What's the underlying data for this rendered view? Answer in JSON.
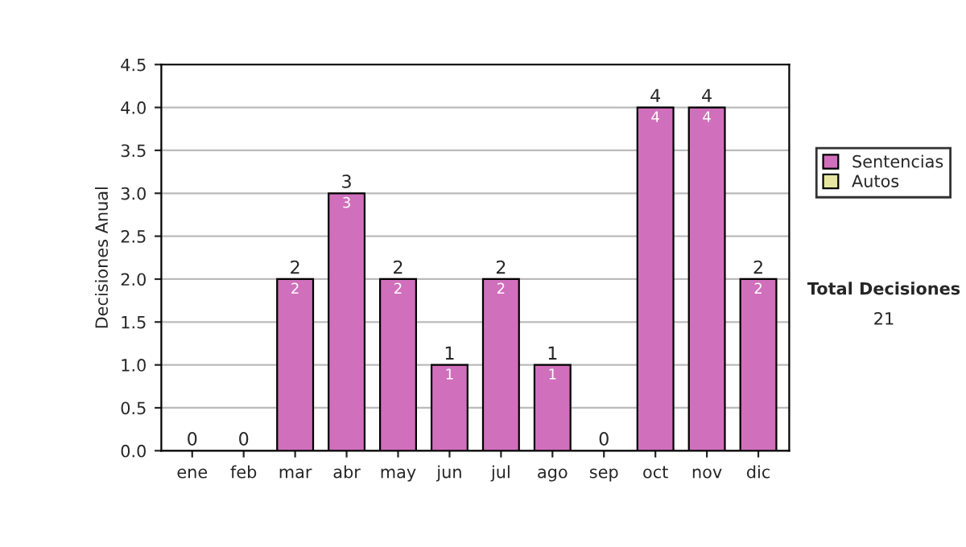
{
  "chart_data": {
    "type": "bar",
    "ylabel": "Decisiones Anual",
    "categories": [
      "ene",
      "feb",
      "mar",
      "abr",
      "may",
      "jun",
      "jul",
      "ago",
      "sep",
      "oct",
      "nov",
      "dic"
    ],
    "stacked": true,
    "series": [
      {
        "name": "Sentencias",
        "color": "#d070bc",
        "values": [
          0,
          0,
          2,
          3,
          2,
          1,
          2,
          1,
          0,
          4,
          4,
          2
        ],
        "value_labels": [
          null,
          null,
          "2",
          "3",
          "2",
          "1",
          "2",
          "1",
          null,
          "4",
          "4",
          "2"
        ]
      },
      {
        "name": "Autos",
        "color": "#e6e6a0",
        "values": [
          0,
          0,
          0,
          0,
          0,
          0,
          0,
          0,
          0,
          0,
          0,
          0
        ]
      }
    ],
    "totals": [
      "0",
      "0",
      "2",
      "3",
      "2",
      "1",
      "2",
      "1",
      "0",
      "4",
      "4",
      "2"
    ],
    "ylim": [
      0,
      4.5
    ],
    "yticks": [
      {
        "value": 0,
        "label": "0.0"
      },
      {
        "value": 0.5,
        "label": "0.5"
      },
      {
        "value": 1,
        "label": "1.0"
      },
      {
        "value": 1.5,
        "label": "1.5"
      },
      {
        "value": 2,
        "label": "2.0"
      },
      {
        "value": 2.5,
        "label": "2.5"
      },
      {
        "value": 3,
        "label": "3.0"
      },
      {
        "value": 3.5,
        "label": "3.5"
      },
      {
        "value": 4,
        "label": "4.0"
      },
      {
        "value": 4.5,
        "label": "4.5"
      }
    ],
    "grid": "y",
    "legend": "right",
    "annotations": [
      "Total Decisiones",
      "21"
    ]
  }
}
